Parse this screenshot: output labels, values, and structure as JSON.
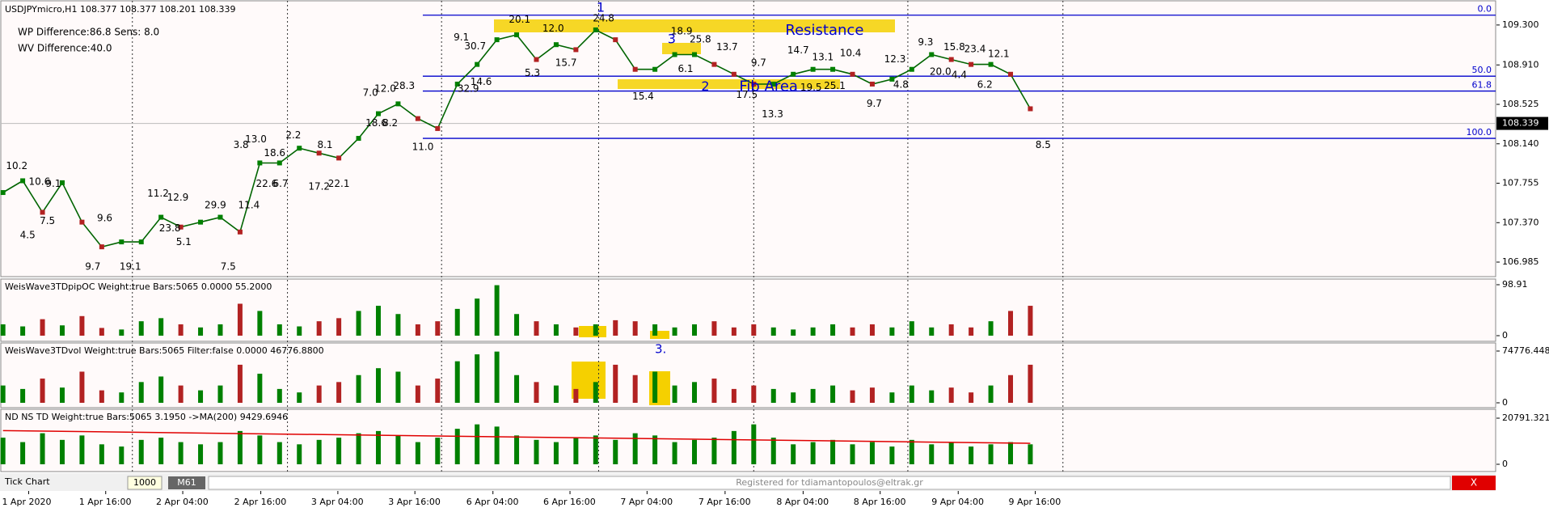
{
  "header": {
    "symbol": "USDJPYmicro,H1",
    "ohlc": [
      108.377,
      108.377,
      108.201,
      108.339
    ],
    "info": [
      "WP Difference:86.8 Sens: 8.0",
      "WV Difference:40.0"
    ]
  },
  "price_chart": {
    "type": "line",
    "color": "#006400",
    "ylim": [
      106.843,
      109.544
    ],
    "yticks": [
      {
        "value": 109.3,
        "label": "109.300"
      },
      {
        "value": 108.91,
        "label": "108.910"
      },
      108.525,
      {
        "value": 108.14,
        "label": "108.140"
      },
      107.755,
      {
        "value": 107.37,
        "label": "107.370"
      },
      106.985
    ],
    "last_price": 108.339,
    "values": [
      107.664,
      107.779,
      107.471,
      107.76,
      107.375,
      107.134,
      107.182,
      107.182,
      107.423,
      107.327,
      107.375,
      107.423,
      107.279,
      107.953,
      107.953,
      108.097,
      108.049,
      108.001,
      108.193,
      108.434,
      108.53,
      108.386,
      108.289,
      108.723,
      108.915,
      109.156,
      109.204,
      108.963,
      109.108,
      109.059,
      109.252,
      109.156,
      108.867,
      108.867,
      109.011,
      109.011,
      108.915,
      108.819,
      108.723,
      108.723,
      108.819,
      108.867,
      108.867,
      108.819,
      108.723,
      108.771,
      108.867,
      109.011,
      108.963,
      108.915,
      108.915,
      108.819,
      108.482
    ],
    "fib_levels": [
      {
        "level": "0.0",
        "price": 109.396
      },
      {
        "level": "50.0",
        "price": 108.8
      },
      {
        "level": "61.8",
        "price": 108.655
      },
      {
        "level": "100.0",
        "price": 108.193
      }
    ],
    "annotations": [
      "10.2",
      "10.6",
      "9.1",
      "4.5",
      "7.5",
      "9.6",
      "9.7",
      "19.1",
      "11.2",
      "12.9",
      "23.8",
      "5.1",
      "29.9",
      "11.4",
      "7.5",
      "3.8",
      "13.0",
      "18.6",
      "22.6",
      "6.7",
      "2.2",
      "8.1",
      "17.2",
      "22.1",
      "7.0",
      "12.0",
      "28.3",
      "18.6",
      "8.2",
      "11.0",
      "9.1",
      "30.7",
      "32.9",
      "14.6",
      "20.1",
      "12.0",
      "5.3",
      "15.7",
      "24.8",
      "18.9",
      "25.8",
      "13.7",
      "6.1",
      "15.4",
      "14.7",
      "13.1",
      "10.4",
      "9.7",
      "17.5",
      "19.5",
      "25.1",
      "13.3",
      "12.3",
      "9.7",
      "4.8",
      "9.3",
      "15.8",
      "23.4",
      "12.1",
      "20.0",
      "4.4",
      "6.2",
      "8.5"
    ],
    "overlay_labels": [
      "Resistance",
      "Fib Area",
      "1",
      "2",
      "3"
    ]
  },
  "panels": [
    {
      "title": "WeisWave3TDpipOC Weight:true Bars:5065 0.0000 55.2000",
      "ylim": [
        0,
        98.91
      ],
      "yticks": [
        0,
        98.91
      ],
      "up_color": "#008000",
      "down_color": "#b22222",
      "values": [
        22,
        18,
        32,
        20,
        38,
        15,
        12,
        28,
        34,
        22,
        16,
        22,
        62,
        48,
        22,
        18,
        28,
        34,
        48,
        58,
        42,
        22,
        28,
        52,
        72,
        98,
        42,
        28,
        22,
        16,
        22,
        30,
        28,
        22,
        16,
        22,
        28,
        16,
        22,
        16,
        12,
        16,
        22,
        16,
        22,
        16,
        28,
        16,
        22,
        16,
        28,
        48,
        58
      ]
    },
    {
      "title": "WeisWave3TDvol Weight:true Bars:5065 Filter:false 0.0000 46776.8800",
      "ylim": [
        0,
        74776.448
      ],
      "yticks": [
        0,
        74776.448
      ],
      "up_color": "#008000",
      "down_color": "#b22222",
      "marker": "3.",
      "values": [
        25000,
        20000,
        35000,
        22000,
        45000,
        18000,
        15000,
        30000,
        38000,
        25000,
        18000,
        25000,
        55000,
        42000,
        20000,
        15000,
        25000,
        30000,
        40000,
        50000,
        45000,
        25000,
        35000,
        60000,
        70000,
        74000,
        40000,
        30000,
        25000,
        20000,
        30000,
        55000,
        40000,
        45000,
        25000,
        30000,
        35000,
        20000,
        25000,
        20000,
        15000,
        20000,
        25000,
        18000,
        22000,
        15000,
        25000,
        18000,
        22000,
        15000,
        25000,
        40000,
        55000
      ]
    },
    {
      "title": "ND NS TD Weight:true Bars:5065   3.1950   ->MA(200) 9429.6946",
      "ylim": [
        0,
        20791.321
      ],
      "yticks": [
        0,
        20791.321
      ],
      "up_color": "#008000",
      "down_color": "#008000",
      "ma_color": "#e00000",
      "ma": [
        15160,
        9429.6946
      ],
      "values": [
        12000,
        10000,
        14000,
        11000,
        13000,
        9000,
        8000,
        11000,
        12000,
        10000,
        9000,
        10000,
        15000,
        13000,
        10000,
        9000,
        11000,
        12000,
        14000,
        15000,
        13000,
        10000,
        12000,
        16000,
        18000,
        17000,
        13000,
        11000,
        10000,
        12000,
        13000,
        11000,
        14000,
        13000,
        10000,
        11000,
        12000,
        15000,
        18000,
        12000,
        9000,
        10000,
        11000,
        9000,
        10000,
        8000,
        11000,
        9000,
        10000,
        8000,
        9000,
        10000,
        9000
      ]
    }
  ],
  "status_bar": {
    "mode": "Tick Chart",
    "count": 1000,
    "period": "M61",
    "registration": "Registered for tdiamantopoulos@eltrak.gr",
    "close": "X"
  },
  "time_axis": [
    "1 Apr 2020",
    "1 Apr 16:00",
    "2 Apr 04:00",
    "2 Apr 16:00",
    "3 Apr 04:00",
    "3 Apr 16:00",
    "6 Apr 04:00",
    "6 Apr 16:00",
    "7 Apr 04:00",
    "7 Apr 16:00",
    "8 Apr 04:00",
    "8 Apr 16:00",
    "9 Apr 04:00",
    "9 Apr 16:00"
  ]
}
